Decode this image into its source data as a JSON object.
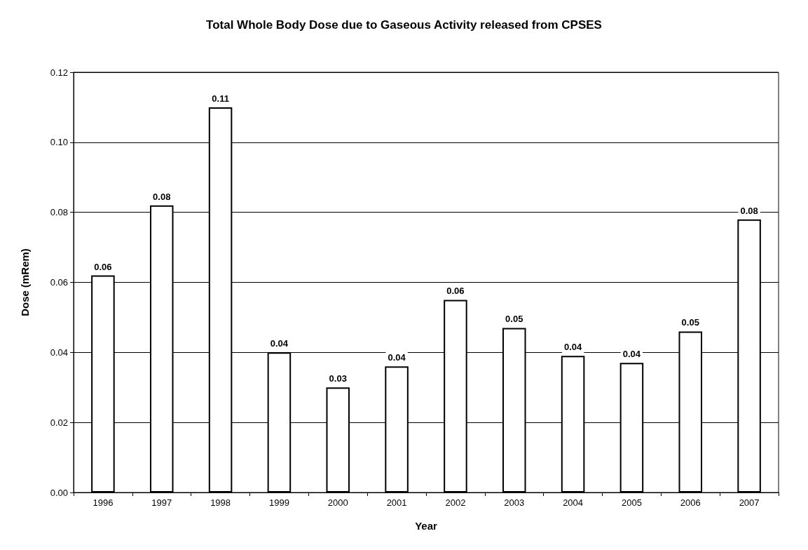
{
  "chart_data": {
    "type": "bar",
    "title": "Total Whole Body Dose due to Gaseous Activity released from CPSES",
    "xlabel": "Year",
    "ylabel": "Dose (mRem)",
    "categories": [
      "1996",
      "1997",
      "1998",
      "1999",
      "2000",
      "2001",
      "2002",
      "2003",
      "2004",
      "2005",
      "2006",
      "2007"
    ],
    "values": [
      0.062,
      0.082,
      0.11,
      0.04,
      0.03,
      0.036,
      0.055,
      0.047,
      0.039,
      0.037,
      0.046,
      0.078
    ],
    "value_labels": [
      "0.06",
      "0.08",
      "0.11",
      "0.04",
      "0.03",
      "0.04",
      "0.06",
      "0.05",
      "0.04",
      "0.04",
      "0.05",
      "0.08"
    ],
    "color": "#ffffff",
    "ylim": [
      0,
      0.12
    ],
    "yticks": [
      {
        "value": 0,
        "label": "0.00"
      },
      {
        "value": 0.02,
        "label": "0.02"
      },
      {
        "value": 0.04,
        "label": "0.04"
      },
      {
        "value": 0.06,
        "label": "0.06"
      },
      {
        "value": 0.08,
        "label": "0.08"
      },
      {
        "value": 0.1,
        "label": "0.10"
      },
      {
        "value": 0.12,
        "label": "0.12"
      }
    ],
    "grid": "y"
  }
}
